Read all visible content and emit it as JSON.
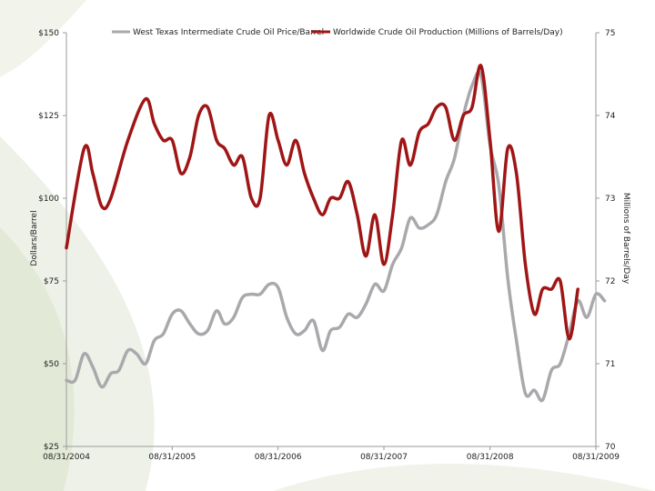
{
  "colors": {
    "price_line": "#a9a9ad",
    "production_line": "#a01515",
    "axis": "#9a9a9a",
    "decor": "#eef1e6"
  },
  "chart_data": {
    "type": "line",
    "x_axis": {
      "type": "date",
      "range": [
        "2004-08-31",
        "2009-08-31"
      ],
      "tick_labels": [
        "08/31/2004",
        "08/31/2005",
        "08/31/2006",
        "08/31/2007",
        "08/31/2008",
        "08/31/2009"
      ],
      "tick_dates": [
        "2004-08-31",
        "2005-08-31",
        "2006-08-31",
        "2007-08-31",
        "2008-08-31",
        "2009-08-31"
      ]
    },
    "y_left": {
      "label": "Dollars/Barrel",
      "range": [
        25,
        150
      ],
      "ticks": [
        25,
        50,
        75,
        100,
        125,
        150
      ],
      "tick_labels": [
        "$25",
        "$50",
        "$75",
        "$100",
        "$125",
        "$150"
      ]
    },
    "y_right": {
      "label": "Millions of Barrels/Day",
      "range": [
        70,
        75
      ],
      "ticks": [
        70,
        71,
        72,
        73,
        74,
        75
      ],
      "tick_labels": [
        "70",
        "71",
        "72",
        "73",
        "74",
        "75"
      ]
    },
    "legend": "top",
    "grid": false,
    "series": [
      {
        "name": "West Texas Intermediate Crude Oil Price/Barrel",
        "axis": "left",
        "points": [
          [
            "2004-08-31",
            45
          ],
          [
            "2004-09-30",
            45
          ],
          [
            "2004-10-31",
            53
          ],
          [
            "2004-11-30",
            49
          ],
          [
            "2004-12-31",
            43
          ],
          [
            "2005-01-31",
            47
          ],
          [
            "2005-02-28",
            48
          ],
          [
            "2005-03-31",
            54
          ],
          [
            "2005-04-30",
            53
          ],
          [
            "2005-05-31",
            50
          ],
          [
            "2005-06-30",
            57
          ],
          [
            "2005-07-31",
            59
          ],
          [
            "2005-08-31",
            65
          ],
          [
            "2005-09-30",
            66
          ],
          [
            "2005-10-31",
            62
          ],
          [
            "2005-11-30",
            59
          ],
          [
            "2005-12-31",
            60
          ],
          [
            "2006-01-31",
            66
          ],
          [
            "2006-02-28",
            62
          ],
          [
            "2006-03-31",
            64
          ],
          [
            "2006-04-30",
            70
          ],
          [
            "2006-05-31",
            71
          ],
          [
            "2006-06-30",
            71
          ],
          [
            "2006-07-31",
            74
          ],
          [
            "2006-08-31",
            73
          ],
          [
            "2006-09-30",
            64
          ],
          [
            "2006-10-31",
            59
          ],
          [
            "2006-11-30",
            60
          ],
          [
            "2006-12-31",
            63
          ],
          [
            "2007-01-31",
            54
          ],
          [
            "2007-02-28",
            60
          ],
          [
            "2007-03-31",
            61
          ],
          [
            "2007-04-30",
            65
          ],
          [
            "2007-05-31",
            64
          ],
          [
            "2007-06-30",
            68
          ],
          [
            "2007-07-31",
            74
          ],
          [
            "2007-08-31",
            72
          ],
          [
            "2007-09-30",
            80
          ],
          [
            "2007-10-31",
            85
          ],
          [
            "2007-11-30",
            94
          ],
          [
            "2007-12-31",
            91
          ],
          [
            "2008-01-31",
            92
          ],
          [
            "2008-02-29",
            95
          ],
          [
            "2008-03-31",
            105
          ],
          [
            "2008-04-30",
            112
          ],
          [
            "2008-05-31",
            125
          ],
          [
            "2008-06-30",
            134
          ],
          [
            "2008-07-31",
            137
          ],
          [
            "2008-08-31",
            116
          ],
          [
            "2008-09-30",
            104
          ],
          [
            "2008-10-31",
            76
          ],
          [
            "2008-11-30",
            57
          ],
          [
            "2008-12-31",
            41
          ],
          [
            "2009-01-31",
            42
          ],
          [
            "2009-02-28",
            39
          ],
          [
            "2009-03-31",
            48
          ],
          [
            "2009-04-30",
            50
          ],
          [
            "2009-05-31",
            59
          ],
          [
            "2009-06-30",
            69
          ],
          [
            "2009-07-31",
            64
          ],
          [
            "2009-08-31",
            71
          ],
          [
            "2009-09-30",
            69
          ]
        ]
      },
      {
        "name": "Worldwide Crude Oil Production (Millions of Barrels/Day)",
        "axis": "right",
        "points": [
          [
            "2004-08-31",
            72.4
          ],
          [
            "2004-10-31",
            73.6
          ],
          [
            "2004-11-30",
            73.3
          ],
          [
            "2004-12-31",
            72.9
          ],
          [
            "2005-01-31",
            73.0
          ],
          [
            "2005-03-31",
            73.7
          ],
          [
            "2005-05-31",
            74.2
          ],
          [
            "2005-06-30",
            73.9
          ],
          [
            "2005-07-31",
            73.7
          ],
          [
            "2005-08-31",
            73.7
          ],
          [
            "2005-09-30",
            73.3
          ],
          [
            "2005-10-31",
            73.5
          ],
          [
            "2005-11-30",
            74.0
          ],
          [
            "2005-12-31",
            74.1
          ],
          [
            "2006-01-31",
            73.7
          ],
          [
            "2006-02-28",
            73.6
          ],
          [
            "2006-03-31",
            73.4
          ],
          [
            "2006-04-30",
            73.5
          ],
          [
            "2006-05-31",
            73.0
          ],
          [
            "2006-06-30",
            73.0
          ],
          [
            "2006-07-31",
            74.0
          ],
          [
            "2006-08-31",
            73.7
          ],
          [
            "2006-09-30",
            73.4
          ],
          [
            "2006-10-31",
            73.7
          ],
          [
            "2006-11-30",
            73.3
          ],
          [
            "2006-12-31",
            73.0
          ],
          [
            "2007-01-31",
            72.8
          ],
          [
            "2007-02-28",
            73.0
          ],
          [
            "2007-03-31",
            73.0
          ],
          [
            "2007-04-30",
            73.2
          ],
          [
            "2007-05-31",
            72.8
          ],
          [
            "2007-06-30",
            72.3
          ],
          [
            "2007-07-31",
            72.8
          ],
          [
            "2007-08-31",
            72.2
          ],
          [
            "2007-09-30",
            72.8
          ],
          [
            "2007-10-31",
            73.7
          ],
          [
            "2007-11-30",
            73.4
          ],
          [
            "2007-12-31",
            73.8
          ],
          [
            "2008-01-31",
            73.9
          ],
          [
            "2008-02-29",
            74.1
          ],
          [
            "2008-03-31",
            74.1
          ],
          [
            "2008-04-30",
            73.7
          ],
          [
            "2008-05-31",
            74.0
          ],
          [
            "2008-06-30",
            74.1
          ],
          [
            "2008-07-31",
            74.6
          ],
          [
            "2008-08-31",
            73.7
          ],
          [
            "2008-09-30",
            72.6
          ],
          [
            "2008-10-31",
            73.6
          ],
          [
            "2008-11-30",
            73.3
          ],
          [
            "2008-12-31",
            72.2
          ],
          [
            "2009-01-31",
            71.6
          ],
          [
            "2009-02-28",
            71.9
          ],
          [
            "2009-03-31",
            71.9
          ],
          [
            "2009-04-30",
            72.0
          ],
          [
            "2009-05-31",
            71.3
          ],
          [
            "2009-06-30",
            71.9
          ]
        ]
      }
    ]
  }
}
